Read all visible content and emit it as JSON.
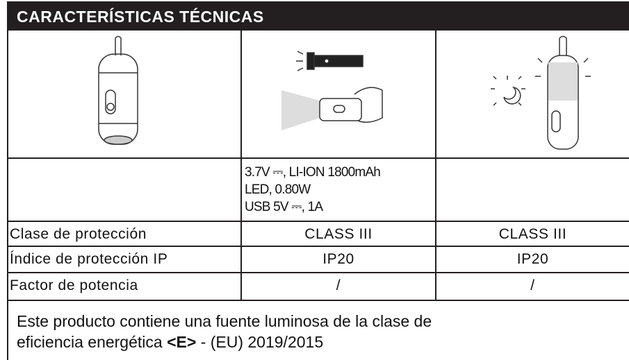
{
  "header": {
    "title": "CARACTERÍSTICAS TÉCNICAS"
  },
  "table": {
    "specs": [
      "3.7V ⎓, LI-ION 1800mAh",
      "LED, 0.80W",
      "USB 5V ⎓, 1A"
    ],
    "rows": [
      [
        "Clase de protección",
        "CLASS III",
        "CLASS III"
      ],
      [
        "Índice de protección IP",
        "IP20",
        "IP20"
      ],
      [
        "Factor de potencia",
        "/",
        "/"
      ]
    ]
  },
  "footer": {
    "line1": "Este producto contiene una fuente luminosa de la clase de",
    "line2": [
      "eficiencia energética ",
      "<E>",
      " - (EU) 2019/2015"
    ]
  }
}
